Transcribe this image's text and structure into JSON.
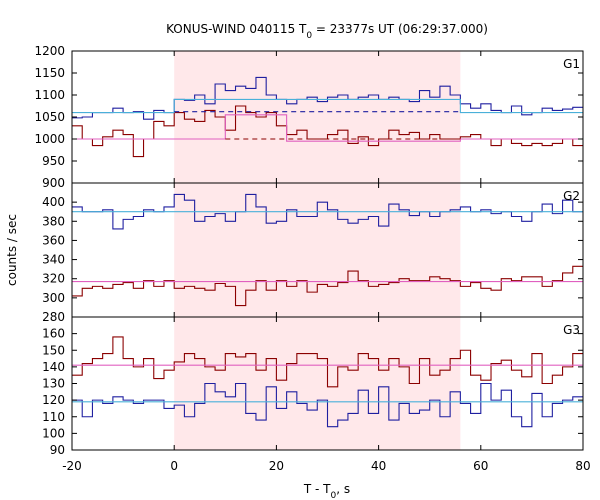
{
  "chart_data": {
    "type": "line",
    "title_main": "KONUS-WIND 040115 T",
    "title_sub": "0",
    "title_rest": " = 23377s UT (06:29:37.000)",
    "xlabel_main": "T - T",
    "xlabel_sub": "0",
    "xlabel_rest": ", s",
    "ylabel": "counts / sec",
    "xlim": [
      -20,
      80
    ],
    "x_ticks": [
      "-20",
      "0",
      "20",
      "40",
      "60",
      "80"
    ],
    "shaded_interval": [
      0,
      56
    ],
    "colors": {
      "blue": "#1f1fa0",
      "red": "#8b0000",
      "cyan": "#4ab0d9",
      "pink": "#e060c0",
      "shade": "#ffe8ea"
    },
    "bin_edges": [
      -20,
      -18,
      -16,
      -14,
      -12,
      -10,
      -8,
      -6,
      -4,
      -2,
      0,
      2,
      4,
      6,
      8,
      10,
      12,
      14,
      16,
      18,
      20,
      22,
      24,
      26,
      28,
      30,
      32,
      34,
      36,
      38,
      40,
      42,
      44,
      46,
      48,
      50,
      52,
      54,
      56,
      58,
      60,
      62,
      64,
      66,
      68,
      70,
      72,
      74,
      76,
      78,
      80
    ],
    "panels": [
      {
        "label": "G1",
        "ylim": [
          900,
          1200
        ],
        "y_ticks": [
          900,
          950,
          1000,
          1050,
          1100,
          1150,
          1200
        ],
        "series": [
          {
            "color": "blue",
            "values": [
              1048,
              1050,
              1060,
              1060,
              1070,
              1060,
              1062,
              1045,
              1065,
              1060,
              1090,
              1088,
              1100,
              1080,
              1125,
              1110,
              1120,
              1115,
              1140,
              1100,
              1090,
              1080,
              1090,
              1095,
              1085,
              1095,
              1100,
              1090,
              1095,
              1100,
              1090,
              1095,
              1090,
              1085,
              1110,
              1095,
              1120,
              1100,
              1080,
              1070,
              1080,
              1065,
              1060,
              1075,
              1055,
              1060,
              1070,
              1065,
              1068,
              1072
            ]
          },
          {
            "color": "red",
            "values": [
              1030,
              1000,
              985,
              1005,
              1020,
              1010,
              960,
              1000,
              1040,
              1030,
              1060,
              1045,
              1040,
              1065,
              1050,
              1020,
              1075,
              1060,
              1050,
              1060,
              1030,
              1010,
              1020,
              1000,
              1000,
              1010,
              1020,
              990,
              1005,
              985,
              1000,
              1020,
              1010,
              1015,
              1000,
              1010,
              1000,
              1000,
              1005,
              1010,
              1000,
              985,
              1000,
              990,
              985,
              990,
              985,
              990,
              1000,
              985
            ]
          },
          {
            "color": "cyan",
            "segments": [
              [
                -20,
                0,
                1060
              ],
              [
                0,
                56,
                1090
              ],
              [
                56,
                80,
                1060
              ]
            ]
          },
          {
            "color": "pink",
            "segments": [
              [
                -20,
                10,
                1000
              ],
              [
                10,
                22,
                1055
              ],
              [
                22,
                56,
                995
              ],
              [
                56,
                80,
                1000
              ]
            ]
          },
          {
            "color": "blue",
            "dashed": true,
            "segments": [
              [
                0,
                56,
                1062
              ]
            ]
          },
          {
            "color": "red",
            "dashed": true,
            "segments": [
              [
                10,
                56,
                1000
              ]
            ]
          }
        ]
      },
      {
        "label": "G2",
        "ylim": [
          280,
          420
        ],
        "y_ticks": [
          280,
          300,
          320,
          340,
          360,
          380,
          400
        ],
        "series": [
          {
            "color": "blue",
            "values": [
              395,
              390,
              390,
              392,
              372,
              382,
              385,
              392,
              390,
              395,
              408,
              402,
              380,
              385,
              388,
              380,
              390,
              408,
              395,
              378,
              380,
              392,
              385,
              385,
              400,
              392,
              382,
              378,
              382,
              385,
              375,
              398,
              392,
              386,
              390,
              385,
              390,
              392,
              395,
              390,
              392,
              388,
              390,
              385,
              380,
              390,
              398,
              388,
              402,
              390
            ]
          },
          {
            "color": "red",
            "values": [
              302,
              310,
              312,
              310,
              314,
              316,
              310,
              318,
              312,
              318,
              310,
              312,
              310,
              308,
              315,
              312,
              292,
              308,
              318,
              308,
              318,
              312,
              318,
              306,
              314,
              312,
              316,
              328,
              318,
              312,
              314,
              316,
              320,
              318,
              318,
              322,
              320,
              318,
              312,
              316,
              310,
              308,
              320,
              318,
              322,
              322,
              312,
              318,
              326,
              333
            ]
          },
          {
            "color": "cyan",
            "segments": [
              [
                -20,
                80,
                390
              ]
            ]
          },
          {
            "color": "pink",
            "segments": [
              [
                -20,
                80,
                317
              ]
            ]
          }
        ]
      },
      {
        "label": "G3",
        "ylim": [
          90,
          170
        ],
        "y_ticks": [
          90,
          100,
          110,
          120,
          130,
          140,
          150,
          160
        ],
        "series": [
          {
            "color": "red",
            "values": [
              135,
              142,
              145,
              148,
              158,
              145,
              140,
              145,
              133,
              138,
              143,
              148,
              145,
              140,
              138,
              148,
              146,
              148,
              138,
              145,
              132,
              142,
              148,
              148,
              145,
              128,
              140,
              138,
              148,
              145,
              138,
              145,
              140,
              130,
              145,
              135,
              138,
              145,
              150,
              135,
              132,
              142,
              144,
              138,
              134,
              148,
              130,
              135,
              140,
              148
            ]
          },
          {
            "color": "blue",
            "values": [
              120,
              110,
              120,
              118,
              122,
              120,
              118,
              120,
              120,
              115,
              117,
              110,
              118,
              130,
              125,
              122,
              130,
              112,
              108,
              128,
              115,
              125,
              118,
              114,
              120,
              104,
              108,
              112,
              126,
              112,
              128,
              108,
              118,
              112,
              114,
              120,
              110,
              125,
              118,
              112,
              130,
              120,
              126,
              110,
              104,
              124,
              110,
              118,
              120,
              122
            ]
          },
          {
            "color": "pink",
            "segments": [
              [
                -20,
                80,
                141
              ]
            ]
          },
          {
            "color": "cyan",
            "segments": [
              [
                -20,
                80,
                119
              ]
            ]
          }
        ]
      }
    ]
  }
}
